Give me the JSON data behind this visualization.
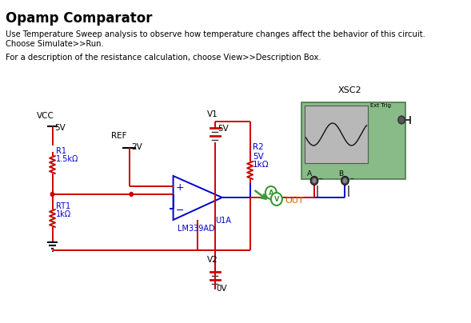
{
  "title": "Opamp Comparator",
  "desc_line1": "Use Temperature Sweep analysis to observe how temperature changes affect the behavior of this circuit.",
  "desc_line2": "Choose Simulate>>Run.",
  "desc_line3": "For a description of the resistance calculation, choose View>>Description Box.",
  "bg_color": "#ffffff",
  "wire_blue": "#0000cc",
  "wire_red": "#cc0000",
  "component_blue": "#0000cc",
  "text_color": "#000000",
  "blue_text": "#0000cc",
  "orange_text": "#cc6600",
  "green_probe": "#3a9a3a",
  "scope_bg": "#b8b8b8",
  "scope_frame": "#88bb88",
  "scope_frame_dark": "#4a7a4a"
}
